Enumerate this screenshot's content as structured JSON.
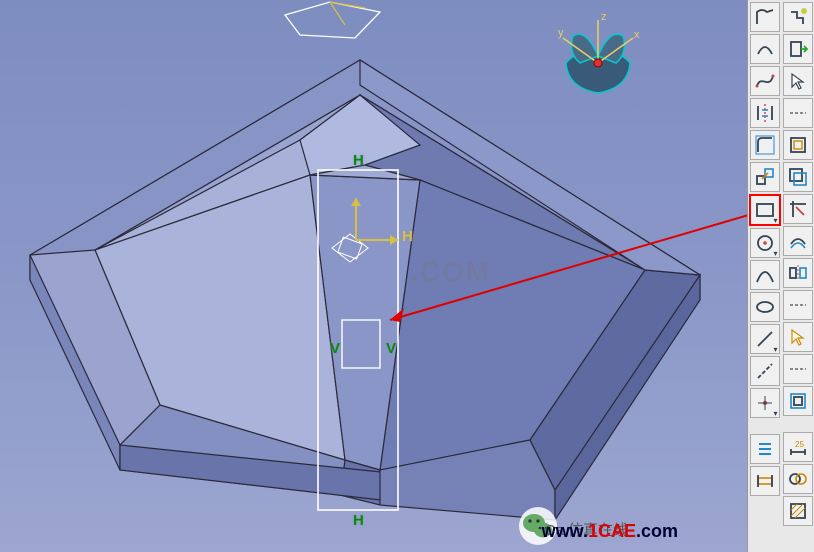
{
  "viewport": {
    "background_gradient": [
      "#7e8dc0",
      "#9ca6d0"
    ],
    "watermark_text": ".COM",
    "url_watermark_prefix": "www.",
    "url_watermark_red": "1CAE",
    "url_watermark_suffix": ".com",
    "footer_text": "Ca  仿真在线"
  },
  "compass": {
    "axis_x": "x",
    "axis_y": "y",
    "axis_z": "z",
    "colors": {
      "fill": "#4a6a8a",
      "edge": "#0aa",
      "axis": "#e8d060"
    }
  },
  "solid": {
    "face_colors": {
      "top_left": "#a8b2d8",
      "top_right": "#6e7ab0",
      "front": "#8a96c8",
      "edge": "#2a2a3a",
      "chamfer_top": "#b0bae0",
      "chamfer_side": "#6a76aa"
    }
  },
  "sketch": {
    "rect_outer": {
      "color": "#ffffff"
    },
    "rect_inner": {
      "color": "#ffffff"
    },
    "axes": {
      "h_label": "H",
      "v_label": "V",
      "h_color": "#d8c040",
      "origin_color": "#ffff60"
    },
    "constraint_labels": {
      "H": "H",
      "V": "V",
      "color": "#0a8a0a"
    }
  },
  "annotation": {
    "arrow_color": "#e00000",
    "highlight_box_color": "#e00000"
  },
  "toolbar": {
    "col1": [
      {
        "name": "profile-icon",
        "glyph": "profile"
      },
      {
        "name": "arc-icon",
        "glyph": "arc"
      },
      {
        "name": "spline-icon",
        "glyph": "spline"
      },
      {
        "name": "mirror-icon",
        "glyph": "mirror"
      },
      {
        "name": "corner-icon",
        "glyph": "corner"
      },
      {
        "name": "transform-icon",
        "glyph": "transform"
      },
      {
        "name": "rectangle-icon",
        "glyph": "rectangle",
        "highlight": true,
        "dropdown": true
      },
      {
        "name": "circle-icon",
        "glyph": "circle",
        "dropdown": true
      },
      {
        "name": "conic-icon",
        "glyph": "conic"
      },
      {
        "name": "ellipse-icon",
        "glyph": "ellipse"
      },
      {
        "name": "line-icon",
        "glyph": "line",
        "dropdown": true
      },
      {
        "name": "axis-icon",
        "glyph": "axis"
      },
      {
        "name": "point-icon",
        "glyph": "point",
        "dropdown": true
      },
      {
        "name": "sep",
        "glyph": "sep"
      },
      {
        "name": "list-icon",
        "glyph": "list"
      },
      {
        "name": "constraint-icon",
        "glyph": "constraint"
      }
    ],
    "col2": [
      {
        "name": "sketch-solver-icon",
        "glyph": "solver"
      },
      {
        "name": "output-icon",
        "glyph": "output"
      },
      {
        "name": "select-icon",
        "glyph": "select"
      },
      {
        "name": "dash-icon",
        "glyph": "dash"
      },
      {
        "name": "project-icon",
        "glyph": "project"
      },
      {
        "name": "intersect-icon",
        "glyph": "intersect"
      },
      {
        "name": "clip-icon",
        "glyph": "clip"
      },
      {
        "name": "offset-icon",
        "glyph": "offset"
      },
      {
        "name": "symmetry-icon",
        "glyph": "symmetry"
      },
      {
        "name": "dash2-icon",
        "glyph": "dash"
      },
      {
        "name": "arrow-sel-icon",
        "glyph": "arrowsel"
      },
      {
        "name": "dash3-icon",
        "glyph": "dash"
      },
      {
        "name": "frame-icon",
        "glyph": "frame"
      },
      {
        "name": "sep",
        "glyph": "sep"
      },
      {
        "name": "dim-icon",
        "glyph": "dim"
      },
      {
        "name": "anim-icon",
        "glyph": "anim"
      },
      {
        "name": "hatch-icon",
        "glyph": "hatch"
      }
    ]
  }
}
